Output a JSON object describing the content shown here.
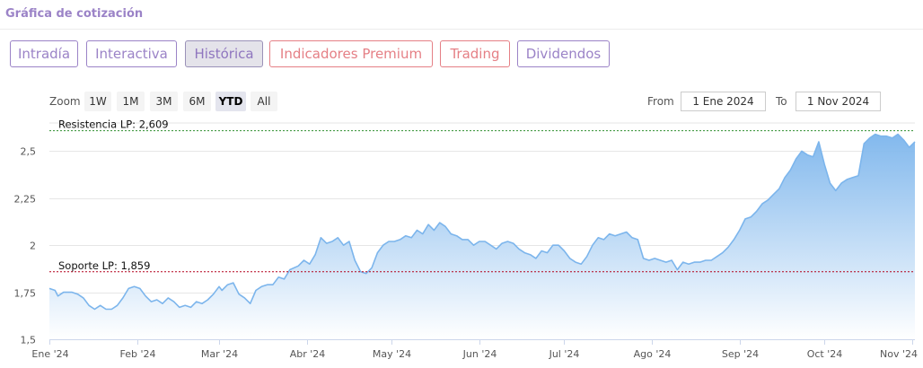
{
  "header": {
    "title": "Gráfica de cotización"
  },
  "tabs": [
    {
      "label": "Intradía",
      "style": "purple",
      "active": false
    },
    {
      "label": "Interactiva",
      "style": "purple",
      "active": false
    },
    {
      "label": "Histórica",
      "style": "purple",
      "active": true
    },
    {
      "label": "Indicadores Premium",
      "style": "red",
      "active": false
    },
    {
      "label": "Trading",
      "style": "red",
      "active": false
    },
    {
      "label": "Dividendos",
      "style": "purple",
      "active": false
    }
  ],
  "range_selector": {
    "zoom_label": "Zoom",
    "buttons": [
      {
        "label": "1W",
        "active": false
      },
      {
        "label": "1M",
        "active": false
      },
      {
        "label": "3M",
        "active": false
      },
      {
        "label": "6M",
        "active": false
      },
      {
        "label": "YTD",
        "active": true
      },
      {
        "label": "All",
        "active": false
      }
    ],
    "from_label": "From",
    "from_value": "1 Ene 2024",
    "to_label": "To",
    "to_value": "1 Nov 2024"
  },
  "colors": {
    "line": "#7cb5ec",
    "fill_top": "#7cb5ec",
    "resistance": "#2f8f2f",
    "support": "#b3001b",
    "grid": "#e6e6e6"
  },
  "chart_data": {
    "type": "area",
    "title": "",
    "xlabel": "",
    "ylabel": "",
    "ylim": [
      1.5,
      2.65
    ],
    "y_ticks": [
      1.5,
      1.75,
      2,
      2.25,
      2.5
    ],
    "y_tick_labels": [
      "1,5",
      "1,75",
      "2",
      "2,25",
      "2,5"
    ],
    "x_tick_labels": [
      "Ene '24",
      "Feb '24",
      "Mar '24",
      "Abr '24",
      "May '24",
      "Jun '24",
      "Jul '24",
      "Ago '24",
      "Sep '24",
      "Oct '24",
      "Nov '24"
    ],
    "x_tick_days": [
      0,
      31,
      60,
      91,
      121,
      152,
      182,
      213,
      244,
      274,
      305
    ],
    "xlim_days": [
      0,
      306
    ],
    "x_start_date": "2024-01-01",
    "grid": true,
    "legend": "none",
    "annotations": [
      {
        "label": "Resistencia LP: 2,609",
        "value": 2.609,
        "kind": "resistance"
      },
      {
        "label": "Soporte LP: 1,859",
        "value": 1.859,
        "kind": "support"
      }
    ],
    "series": [
      {
        "name": "",
        "x_days": [
          0,
          2,
          3,
          5,
          8,
          10,
          12,
          14,
          16,
          18,
          20,
          22,
          24,
          26,
          28,
          30,
          32,
          34,
          36,
          38,
          40,
          42,
          44,
          46,
          48,
          50,
          52,
          54,
          56,
          58,
          60,
          61,
          63,
          65,
          67,
          69,
          71,
          73,
          75,
          77,
          79,
          81,
          83,
          85,
          88,
          90,
          92,
          94,
          96,
          98,
          100,
          102,
          104,
          106,
          108,
          110,
          112,
          114,
          116,
          118,
          120,
          122,
          124,
          126,
          128,
          130,
          132,
          134,
          136,
          138,
          140,
          142,
          144,
          146,
          148,
          150,
          152,
          154,
          156,
          158,
          160,
          162,
          164,
          166,
          168,
          170,
          172,
          174,
          176,
          178,
          180,
          182,
          184,
          186,
          188,
          190,
          192,
          194,
          196,
          198,
          200,
          202,
          204,
          206,
          208,
          210,
          212,
          214,
          216,
          218,
          220,
          222,
          224,
          226,
          228,
          230,
          232,
          234,
          236,
          238,
          240,
          242,
          244,
          246,
          248,
          250,
          252,
          254,
          256,
          258,
          260,
          262,
          264,
          266,
          268,
          270,
          272,
          274,
          276,
          278,
          280,
          282,
          284,
          286,
          288,
          290,
          292,
          294,
          296,
          298,
          300,
          302,
          304,
          306
        ],
        "values": [
          1.77,
          1.76,
          1.73,
          1.75,
          1.75,
          1.74,
          1.72,
          1.68,
          1.66,
          1.68,
          1.66,
          1.66,
          1.68,
          1.72,
          1.77,
          1.78,
          1.77,
          1.73,
          1.7,
          1.71,
          1.69,
          1.72,
          1.7,
          1.67,
          1.68,
          1.67,
          1.7,
          1.69,
          1.71,
          1.74,
          1.78,
          1.76,
          1.79,
          1.8,
          1.74,
          1.72,
          1.69,
          1.76,
          1.78,
          1.79,
          1.79,
          1.83,
          1.82,
          1.87,
          1.89,
          1.92,
          1.9,
          1.95,
          2.04,
          2.01,
          2.02,
          2.04,
          2.0,
          2.02,
          1.92,
          1.86,
          1.85,
          1.88,
          1.96,
          2.0,
          2.02,
          2.02,
          2.03,
          2.05,
          2.04,
          2.08,
          2.06,
          2.11,
          2.08,
          2.12,
          2.1,
          2.06,
          2.05,
          2.03,
          2.03,
          2.0,
          2.02,
          2.02,
          2.0,
          1.98,
          2.01,
          2.02,
          2.01,
          1.98,
          1.96,
          1.95,
          1.93,
          1.97,
          1.96,
          2.0,
          2.0,
          1.97,
          1.93,
          1.91,
          1.9,
          1.94,
          2.0,
          2.04,
          2.03,
          2.06,
          2.05,
          2.06,
          2.07,
          2.04,
          2.03,
          1.93,
          1.92,
          1.93,
          1.92,
          1.91,
          1.92,
          1.87,
          1.91,
          1.9,
          1.91,
          1.91,
          1.92,
          1.92,
          1.94,
          1.96,
          1.99,
          2.03,
          2.08,
          2.14,
          2.15,
          2.18,
          2.22,
          2.24,
          2.27,
          2.3,
          2.36,
          2.4,
          2.46,
          2.5,
          2.48,
          2.47,
          2.55,
          2.43,
          2.33,
          2.29,
          2.33,
          2.35,
          2.36,
          2.37,
          2.54,
          2.57,
          2.59,
          2.58,
          2.58,
          2.57,
          2.59,
          2.56,
          2.52,
          2.55
        ]
      }
    ]
  }
}
